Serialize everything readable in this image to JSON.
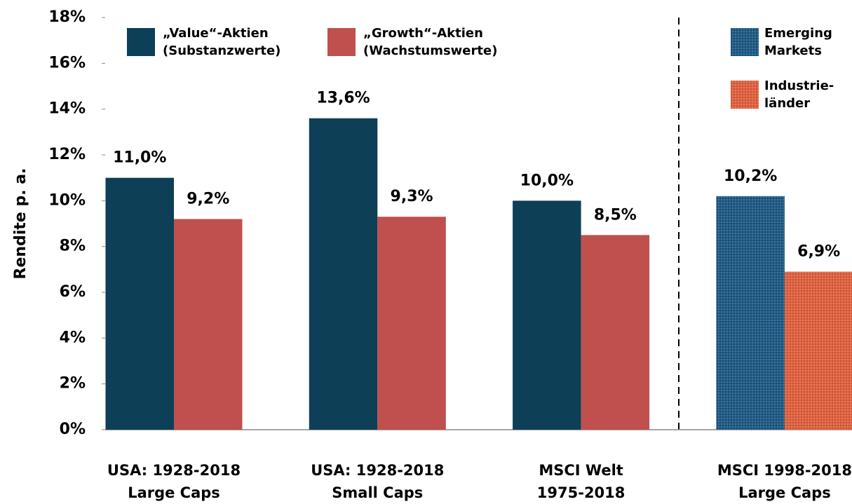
{
  "chart_data": {
    "type": "bar",
    "y_label": "Rendite p. a.",
    "categories": [
      [
        "USA: 1928-2018",
        "Large Caps"
      ],
      [
        "USA: 1928-2018",
        "Small Caps"
      ],
      [
        "MSCI Welt",
        "1975-2018"
      ],
      [
        "MSCI 1998-2018",
        "Large Caps"
      ]
    ],
    "series": [
      {
        "name": [
          "„Value“-Aktien",
          "(Substanzwerte)"
        ],
        "color": "#0d3f57",
        "values": [
          11.0,
          13.6,
          10.0,
          null
        ],
        "value_labels": [
          "11,0%",
          "13,6%",
          "10,0%",
          null
        ]
      },
      {
        "name": [
          "„Growth“-Aktien",
          "(Wachstumswerte)"
        ],
        "color": "#c0504d",
        "values": [
          9.2,
          9.3,
          8.5,
          null
        ],
        "value_labels": [
          "9,2%",
          "9,3%",
          "8,5%",
          null
        ]
      },
      {
        "name": [
          "Emerging",
          "Markets"
        ],
        "color": "#1f5a85",
        "pattern": true,
        "values": [
          null,
          null,
          null,
          10.2
        ],
        "value_labels": [
          null,
          null,
          null,
          "10,2%"
        ]
      },
      {
        "name": [
          "Industrie-",
          "länder"
        ],
        "color": "#e0613f",
        "pattern": true,
        "values": [
          null,
          null,
          null,
          6.9
        ],
        "value_labels": [
          null,
          null,
          null,
          "6,9%"
        ]
      }
    ],
    "ylim": [
      0,
      18
    ],
    "yticks": [
      {
        "value": 0,
        "label": "0%"
      },
      {
        "value": 2,
        "label": "2%"
      },
      {
        "value": 4,
        "label": "4%"
      },
      {
        "value": 6,
        "label": "6%"
      },
      {
        "value": 8,
        "label": "8%"
      },
      {
        "value": 10,
        "label": "10%"
      },
      {
        "value": 12,
        "label": "12%"
      },
      {
        "value": 14,
        "label": "14%"
      },
      {
        "value": 16,
        "label": "16%"
      },
      {
        "value": 18,
        "label": "18%"
      }
    ],
    "grid": false
  }
}
